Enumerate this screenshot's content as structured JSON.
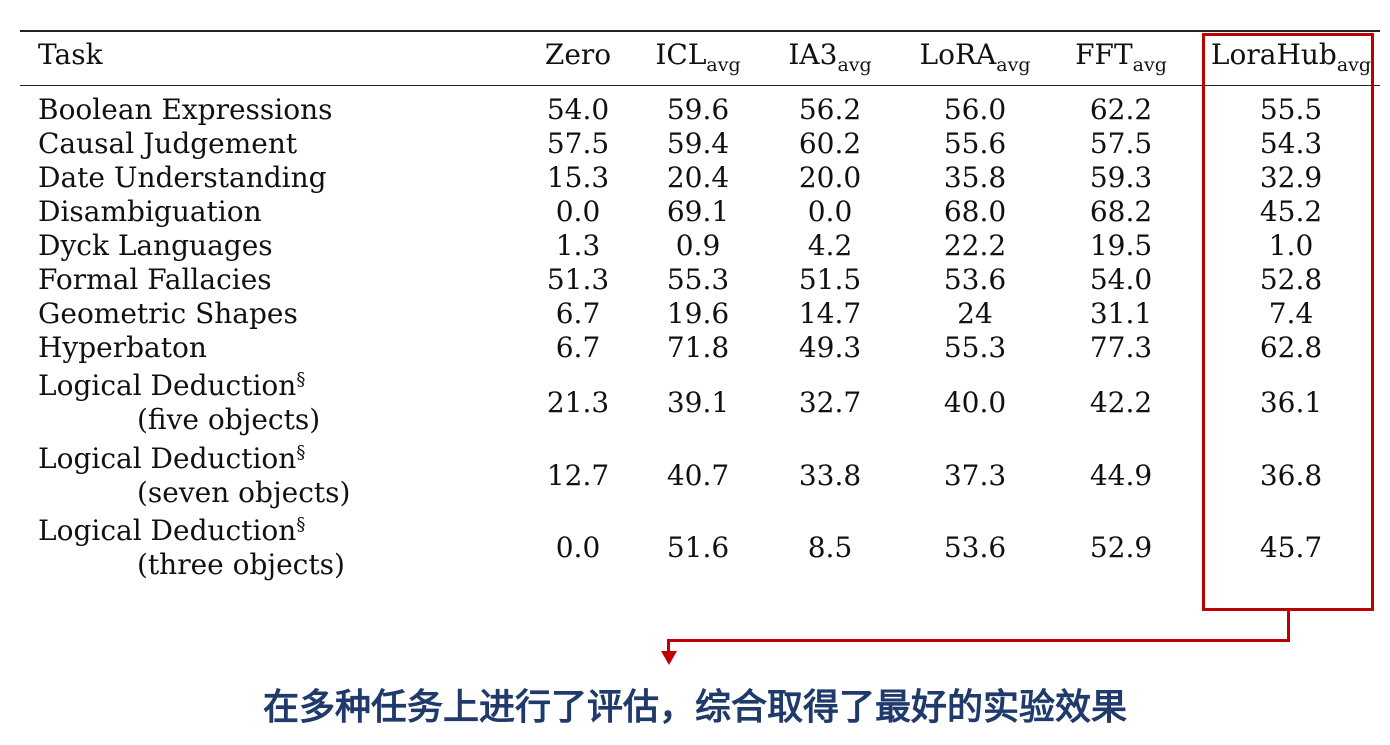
{
  "chart_data": {
    "type": "table",
    "columns": [
      {
        "base": "Task",
        "sub": ""
      },
      {
        "base": "Zero",
        "sub": ""
      },
      {
        "base": "ICL",
        "sub": "avg"
      },
      {
        "base": "IA3",
        "sub": "avg"
      },
      {
        "base": "LoRA",
        "sub": "avg"
      },
      {
        "base": "FFT",
        "sub": "avg"
      },
      {
        "base": "LoraHub",
        "sub": "avg"
      }
    ],
    "rows": [
      {
        "task": "Boolean Expressions",
        "task_sub": "",
        "mark": "",
        "values": [
          "54.0",
          "59.6",
          "56.2",
          "56.0",
          "62.2",
          "55.5"
        ]
      },
      {
        "task": "Causal Judgement",
        "task_sub": "",
        "mark": "",
        "values": [
          "57.5",
          "59.4",
          "60.2",
          "55.6",
          "57.5",
          "54.3"
        ]
      },
      {
        "task": "Date Understanding",
        "task_sub": "",
        "mark": "",
        "values": [
          "15.3",
          "20.4",
          "20.0",
          "35.8",
          "59.3",
          "32.9"
        ]
      },
      {
        "task": "Disambiguation",
        "task_sub": "",
        "mark": "",
        "values": [
          "0.0",
          "69.1",
          "0.0",
          "68.0",
          "68.2",
          "45.2"
        ]
      },
      {
        "task": "Dyck Languages",
        "task_sub": "",
        "mark": "",
        "values": [
          "1.3",
          "0.9",
          "4.2",
          "22.2",
          "19.5",
          "1.0"
        ]
      },
      {
        "task": "Formal Fallacies",
        "task_sub": "",
        "mark": "",
        "values": [
          "51.3",
          "55.3",
          "51.5",
          "53.6",
          "54.0",
          "52.8"
        ]
      },
      {
        "task": "Geometric Shapes",
        "task_sub": "",
        "mark": "",
        "values": [
          "6.7",
          "19.6",
          "14.7",
          "24",
          "31.1",
          "7.4"
        ]
      },
      {
        "task": "Hyperbaton",
        "task_sub": "",
        "mark": "",
        "values": [
          "6.7",
          "71.8",
          "49.3",
          "55.3",
          "77.3",
          "62.8"
        ]
      },
      {
        "task": "Logical Deduction",
        "task_sub": "(five objects)",
        "mark": "§",
        "values": [
          "21.3",
          "39.1",
          "32.7",
          "40.0",
          "42.2",
          "36.1"
        ]
      },
      {
        "task": "Logical Deduction",
        "task_sub": "(seven objects)",
        "mark": "§",
        "values": [
          "12.7",
          "40.7",
          "33.8",
          "37.3",
          "44.9",
          "36.8"
        ]
      },
      {
        "task": "Logical Deduction",
        "task_sub": "(three objects)",
        "mark": "§",
        "values": [
          "0.0",
          "51.6",
          "8.5",
          "53.6",
          "52.9",
          "45.7"
        ]
      }
    ],
    "highlight_column": "LoraHub",
    "highlight_color": "#c00000"
  },
  "caption": "在多种任务上进行了评估，综合取得了最好的实验效果",
  "caption_color": "#1f3a6b"
}
